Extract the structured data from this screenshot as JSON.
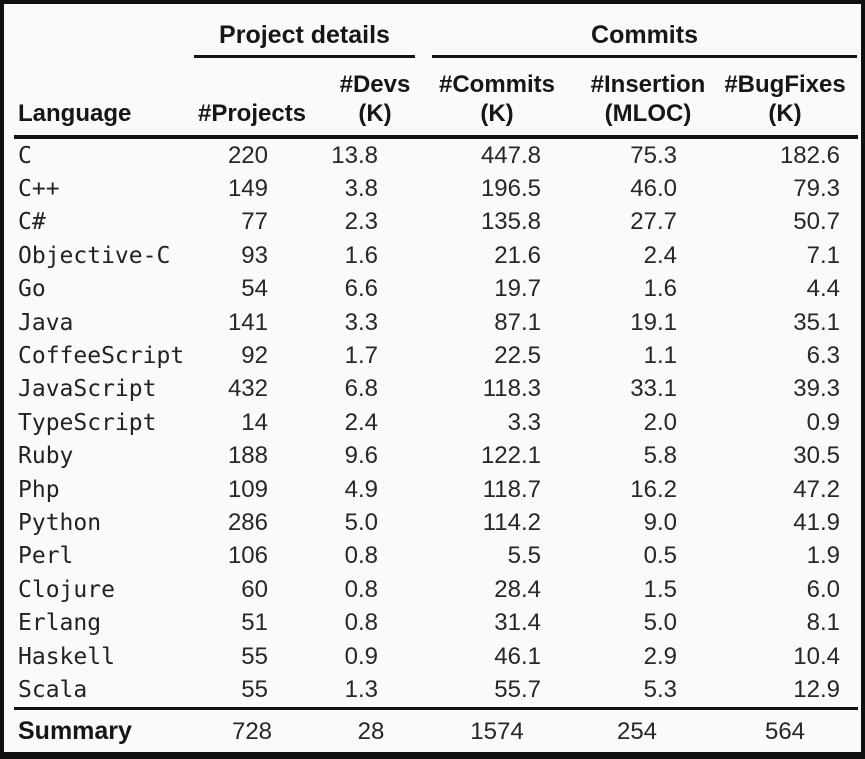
{
  "table": {
    "group_headers": [
      {
        "label": "Project details"
      },
      {
        "label": "Commits"
      }
    ],
    "columns": [
      {
        "label": "Language",
        "unit": ""
      },
      {
        "label": "#Projects",
        "unit": ""
      },
      {
        "label": "#Devs",
        "unit": "(K)"
      },
      {
        "label": "#Commits",
        "unit": "(K)"
      },
      {
        "label": "#Insertion",
        "unit": "(MLOC)"
      },
      {
        "label": "#BugFixes",
        "unit": "(K)"
      }
    ],
    "rows": [
      [
        "C",
        "220",
        "13.8",
        "447.8",
        "75.3",
        "182.6"
      ],
      [
        "C++",
        "149",
        "3.8",
        "196.5",
        "46.0",
        "79.3"
      ],
      [
        "C#",
        "77",
        "2.3",
        "135.8",
        "27.7",
        "50.7"
      ],
      [
        "Objective-C",
        "93",
        "1.6",
        "21.6",
        "2.4",
        "7.1"
      ],
      [
        "Go",
        "54",
        "6.6",
        "19.7",
        "1.6",
        "4.4"
      ],
      [
        "Java",
        "141",
        "3.3",
        "87.1",
        "19.1",
        "35.1"
      ],
      [
        "CoffeeScript",
        "92",
        "1.7",
        "22.5",
        "1.1",
        "6.3"
      ],
      [
        "JavaScript",
        "432",
        "6.8",
        "118.3",
        "33.1",
        "39.3"
      ],
      [
        "TypeScript",
        "14",
        "2.4",
        "3.3",
        "2.0",
        "0.9"
      ],
      [
        "Ruby",
        "188",
        "9.6",
        "122.1",
        "5.8",
        "30.5"
      ],
      [
        "Php",
        "109",
        "4.9",
        "118.7",
        "16.2",
        "47.2"
      ],
      [
        "Python",
        "286",
        "5.0",
        "114.2",
        "9.0",
        "41.9"
      ],
      [
        "Perl",
        "106",
        "0.8",
        "5.5",
        "0.5",
        "1.9"
      ],
      [
        "Clojure",
        "60",
        "0.8",
        "28.4",
        "1.5",
        "6.0"
      ],
      [
        "Erlang",
        "51",
        "0.8",
        "31.4",
        "5.0",
        "8.1"
      ],
      [
        "Haskell",
        "55",
        "0.9",
        "46.1",
        "2.9",
        "10.4"
      ],
      [
        "Scala",
        "55",
        "1.3",
        "55.7",
        "5.3",
        "12.9"
      ]
    ],
    "summary": [
      "Summary",
      "728",
      "28",
      "1574",
      "254",
      "564"
    ],
    "colors": {
      "text": "#26262c",
      "rule": "#141414",
      "background": "#fafafa"
    }
  }
}
